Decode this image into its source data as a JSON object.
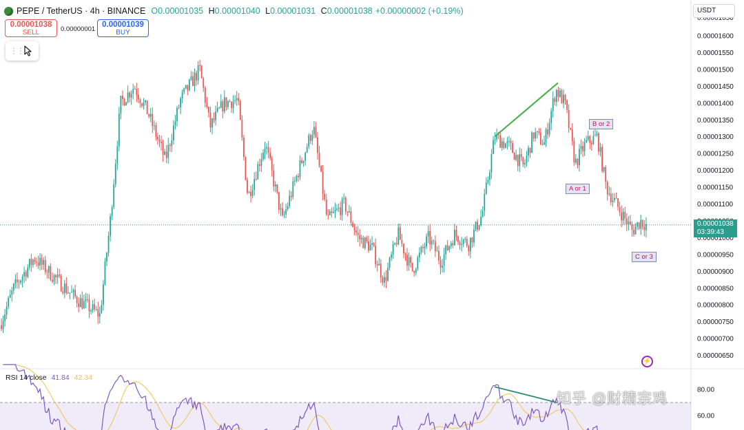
{
  "header": {
    "symbol": "PEPE / TetherUS · 4h · BINANCE",
    "o_label": "O",
    "o_value": "0.00001035",
    "h_label": "H",
    "h_value": "0.00001040",
    "l_label": "L",
    "l_value": "0.00001031",
    "c_label": "C",
    "c_value": "0.00001038",
    "change": "+0.00000002 (+0.19%)"
  },
  "trade": {
    "sell_price": "0.00001038",
    "sell_label": "SELL",
    "spread": "0.00000001",
    "buy_price": "0.00001039",
    "buy_label": "BUY"
  },
  "currency": "USDT",
  "last_price": {
    "price": "0.00001038",
    "countdown": "03:39:43"
  },
  "annotations": {
    "a_or_1": "A or 1",
    "b_or_2": "B or 2",
    "c_or_3": "C or 3"
  },
  "rsi": {
    "label": "RSI 14 close",
    "value": "41.84",
    "ma_value": "42.34",
    "ticks": [
      "80.00",
      "60.00"
    ]
  },
  "watermark": "知乎 @财精宗鸡",
  "colors": {
    "up": "#26a69a",
    "down": "#ef5350",
    "trendline": "#4caf50",
    "rsi": "#7e57c2",
    "rsi_ma": "#f0c24f"
  },
  "icons": {
    "logo": "pepe-logo-icon",
    "cursor": "cursor-arrow-icon",
    "drag": "drag-grip-icon",
    "bolt": "bolt-icon"
  },
  "chart_data": {
    "type": "candlestick",
    "price_axis": {
      "ticks": [
        "0.00001600",
        "0.00001550",
        "0.00001500",
        "0.00001450",
        "0.00001400",
        "0.00001350",
        "0.00001300",
        "0.00001250",
        "0.00001200",
        "0.00001150",
        "0.00001100",
        "0.00001050",
        "0.00001000",
        "0.00000950",
        "0.00000900",
        "0.00000850",
        "0.00000800",
        "0.00000750",
        "0.00000700",
        "0.00000650"
      ],
      "ylim": [
        6.3e-06,
        1.65e-05
      ]
    },
    "last_price": 1.038e-05,
    "approx_close_path": [
      [
        0,
        7.4e-06
      ],
      [
        20,
        8.5e-06
      ],
      [
        50,
        9.4e-06
      ],
      [
        80,
        8.8e-06
      ],
      [
        110,
        8.2e-06
      ],
      [
        145,
        7.7e-06
      ],
      [
        160,
        1.05e-05
      ],
      [
        175,
        1.4e-05
      ],
      [
        195,
        1.45e-05
      ],
      [
        215,
        1.37e-05
      ],
      [
        240,
        1.23e-05
      ],
      [
        262,
        1.41e-05
      ],
      [
        290,
        1.5e-05
      ],
      [
        305,
        1.33e-05
      ],
      [
        325,
        1.4e-05
      ],
      [
        345,
        1.41e-05
      ],
      [
        360,
        1.12e-05
      ],
      [
        385,
        1.28e-05
      ],
      [
        410,
        1.05e-05
      ],
      [
        435,
        1.21e-05
      ],
      [
        455,
        1.33e-05
      ],
      [
        475,
        1.05e-05
      ],
      [
        500,
        1.1e-05
      ],
      [
        520,
        1e-05
      ],
      [
        540,
        9.7e-06
      ],
      [
        558,
        8.7e-06
      ],
      [
        578,
        1.01e-05
      ],
      [
        598,
        9e-06
      ],
      [
        622,
        1e-05
      ],
      [
        640,
        9.3e-06
      ],
      [
        660,
        1.01e-05
      ],
      [
        680,
        9.8e-06
      ],
      [
        700,
        1.07e-05
      ],
      [
        718,
        1.3e-05
      ],
      [
        740,
        1.27e-05
      ],
      [
        760,
        1.21e-05
      ],
      [
        775,
        1.31e-05
      ],
      [
        790,
        1.28e-05
      ],
      [
        807,
        1.44e-05
      ],
      [
        820,
        1.4e-05
      ],
      [
        835,
        1.22e-05
      ],
      [
        850,
        1.28e-05
      ],
      [
        867,
        1.3e-05
      ],
      [
        880,
        1.15e-05
      ],
      [
        900,
        1.08e-05
      ],
      [
        918,
        1.02e-05
      ],
      [
        930,
        1.05e-05
      ],
      [
        938,
        1.038e-05
      ]
    ],
    "trendline": {
      "from": [
        718,
        1.3e-05
      ],
      "to": [
        810,
        1.46e-05
      ]
    },
    "rsi_trendline": {
      "from": [
        718,
        82
      ],
      "to": [
        808,
        70
      ]
    }
  }
}
